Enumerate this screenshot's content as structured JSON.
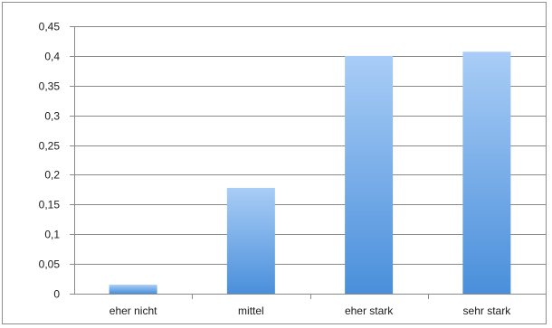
{
  "chart_data": {
    "type": "bar",
    "categories": [
      "eher nicht",
      "mittel",
      "eher stark",
      "sehr stark"
    ],
    "values": [
      0.015,
      0.178,
      0.4,
      0.407
    ],
    "ylim": [
      0,
      0.45
    ],
    "yticks": [
      0,
      0.05,
      0.1,
      0.15,
      0.2,
      0.25,
      0.3,
      0.35,
      0.4,
      0.45
    ],
    "ytick_labels": [
      "0",
      "0,05",
      "0,1",
      "0,15",
      "0,2",
      "0,25",
      "0,3",
      "0,35",
      "0,4",
      "0,45"
    ],
    "grid": true,
    "legend": "none",
    "colors": {
      "bar_top": "#a9cdf6",
      "bar_bottom": "#4a8fdb",
      "grid": "#8a8a8a",
      "axis": "#8a8a8a"
    }
  }
}
